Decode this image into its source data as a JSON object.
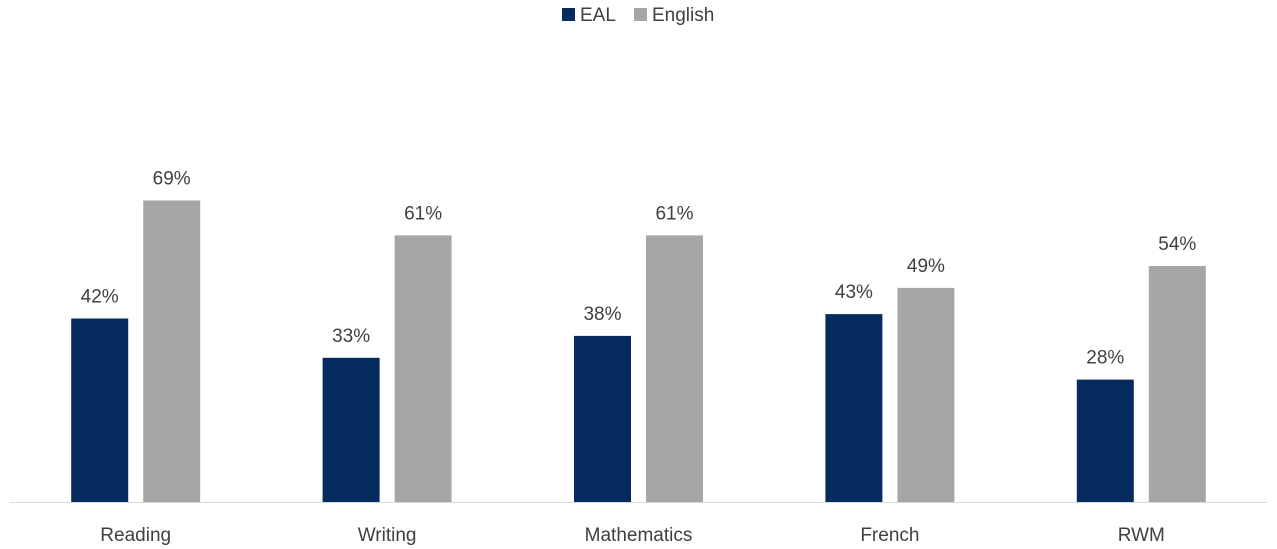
{
  "chart_data": {
    "type": "bar",
    "categories": [
      "Reading",
      "Writing",
      "Mathematics",
      "French",
      "RWM"
    ],
    "series": [
      {
        "name": "EAL",
        "values": [
          42,
          33,
          38,
          43,
          28
        ],
        "labels": [
          "42%",
          "33%",
          "38%",
          "43%",
          "28%"
        ],
        "color": "#062c5f"
      },
      {
        "name": "English",
        "values": [
          69,
          61,
          61,
          49,
          54
        ],
        "labels": [
          "69%",
          "61%",
          "61%",
          "49%",
          "54%"
        ],
        "color": "#a6a6a6"
      }
    ],
    "ylim": [
      0,
      75
    ],
    "grid": false,
    "legend_position": "top-center",
    "axis_color": "#d9d9d9",
    "label_color": "#404040"
  }
}
